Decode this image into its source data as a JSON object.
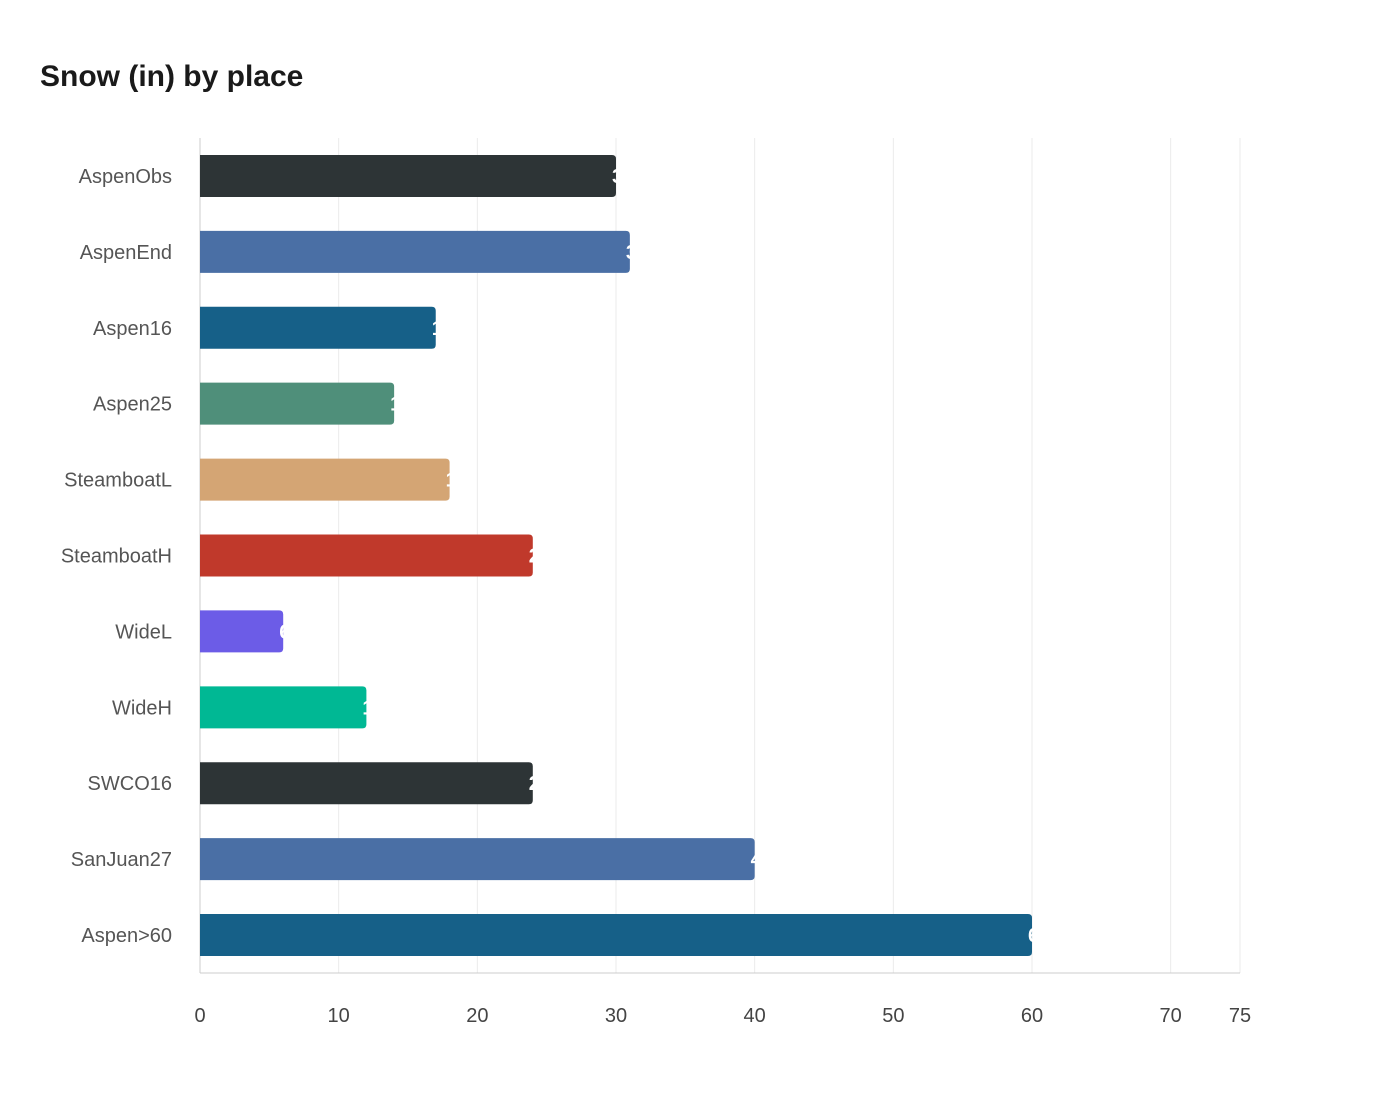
{
  "chart_data": {
    "type": "bar",
    "orientation": "horizontal",
    "title": "Snow (in) by place",
    "xlabel": "",
    "ylabel": "",
    "categories": [
      "AspenObs",
      "AspenEnd",
      "Aspen16",
      "Aspen25",
      "SteamboatL",
      "SteamboatH",
      "WideL",
      "WideH",
      "SWCO16",
      "SanJuan27",
      "Aspen>60"
    ],
    "values": [
      30,
      31,
      17,
      14,
      18,
      24,
      6,
      12,
      24,
      40,
      60
    ],
    "colors": [
      "#2d3436",
      "#4a6fa5",
      "#166088",
      "#4f8f7a",
      "#d4a574",
      "#c0392b",
      "#6c5ce7",
      "#00b894",
      "#2d3436",
      "#4a6fa5",
      "#166088"
    ],
    "xlim": [
      0,
      75
    ],
    "xticks": [
      0,
      10,
      20,
      30,
      40,
      50,
      60,
      70,
      75
    ],
    "grid": true,
    "legend": "none"
  }
}
